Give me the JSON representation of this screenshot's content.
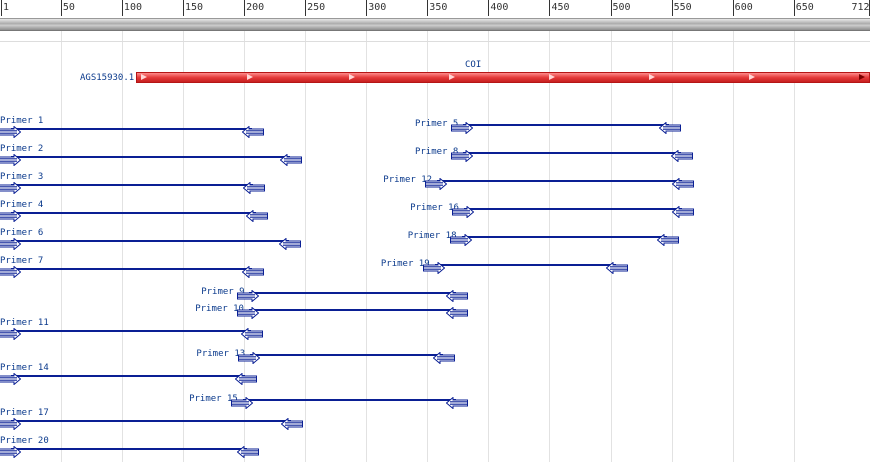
{
  "ruler": {
    "ticks": [
      "1",
      "50",
      "100",
      "150",
      "200",
      "250",
      "300",
      "350",
      "400",
      "450",
      "500",
      "550",
      "600",
      "650",
      "712"
    ]
  },
  "sequence": {
    "accession": "AGS15930.1"
  },
  "gene": {
    "name": "COI"
  },
  "primers": [
    {
      "label": "Primer 1",
      "fwd": 1,
      "rev": 200
    },
    {
      "label": "Primer 2",
      "fwd": 1,
      "rev": 231
    },
    {
      "label": "Primer 3",
      "fwd": 1,
      "rev": 201
    },
    {
      "label": "Primer 4",
      "fwd": 1,
      "rev": 203
    },
    {
      "label": "Primer 6",
      "fwd": 1,
      "rev": 230
    },
    {
      "label": "Primer 7",
      "fwd": 1,
      "rev": 200
    },
    {
      "label": "Primer 5",
      "fwd": 371,
      "rev": 541
    },
    {
      "label": "Primer 8",
      "fwd": 371,
      "rev": 551
    },
    {
      "label": "Primer 12",
      "fwd": 350,
      "rev": 552
    },
    {
      "label": "Primer 16",
      "fwd": 372,
      "rev": 552
    },
    {
      "label": "Primer 18",
      "fwd": 370,
      "rev": 540
    },
    {
      "label": "Primer 19",
      "fwd": 348,
      "rev": 498
    },
    {
      "label": "Primer 9",
      "fwd": 196,
      "rev": 367
    },
    {
      "label": "Primer 10",
      "fwd": 196,
      "rev": 367
    },
    {
      "label": "Primer 11",
      "fwd": 1,
      "rev": 199
    },
    {
      "label": "Primer 13",
      "fwd": 197,
      "rev": 356
    },
    {
      "label": "Primer 14",
      "fwd": 1,
      "rev": 194
    },
    {
      "label": "Primer 15",
      "fwd": 191,
      "rev": 367
    },
    {
      "label": "Primer 17",
      "fwd": 1,
      "rev": 232
    },
    {
      "label": "Primer 20",
      "fwd": 1,
      "rev": 196
    }
  ],
  "colors": {
    "primer": "#0a1f94",
    "gene": "#e43a3a"
  }
}
